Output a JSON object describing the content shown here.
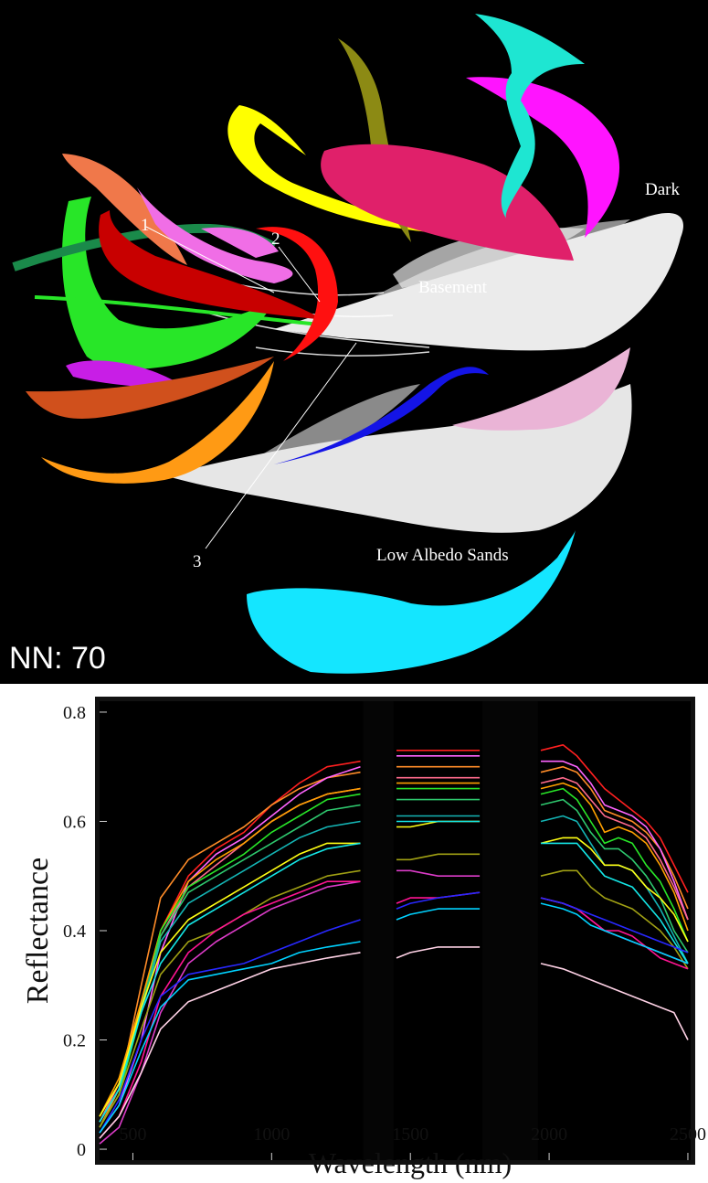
{
  "embedding_panel": {
    "label": "NN: 70",
    "cluster_labels": [
      "Dark",
      "Basement",
      "Low Albedo Sands",
      "1",
      "2",
      "3"
    ],
    "cluster_colors": {
      "dark_cluster": "#ffffff",
      "green": "#28e628",
      "dark_green": "#1a8a4a",
      "red": "#c80000",
      "bright_red": "#ff1010",
      "orange": "#ff9a14",
      "burnt_orange": "#d0501c",
      "salmon": "#f0784a",
      "yellow": "#ffff00",
      "olive": "#8c8a14",
      "crimson": "#e0206a",
      "magenta": "#ff14ff",
      "violet": "#c81ee6",
      "pink": "#f06ee6",
      "light_pink": "#eab4d6",
      "turquoise": "#1ee6d2",
      "cyan": "#14e6ff",
      "blue": "#1414e6"
    }
  },
  "chart_data": {
    "type": "line",
    "title": "",
    "xlabel": "Wavelength (nm)",
    "ylabel": "Reflectance",
    "xlim": [
      380,
      2510
    ],
    "ylim": [
      -0.02,
      0.82
    ],
    "xticks": [
      500,
      1000,
      1500,
      2000,
      2500
    ],
    "yticks": [
      0,
      0.2,
      0.4,
      0.6,
      0.8
    ],
    "ytick_labels": [
      "0",
      "0.2",
      "0.4",
      "0.6",
      "0.8"
    ],
    "masked_bands_nm": [
      [
        1330,
        1440
      ],
      [
        1760,
        1960
      ]
    ],
    "grid": false,
    "legend": "none",
    "x": [
      380,
      450,
      530,
      600,
      700,
      800,
      900,
      1000,
      1100,
      1200,
      1320,
      1450,
      1500,
      1600,
      1750,
      1970,
      2050,
      2100,
      2150,
      2200,
      2250,
      2300,
      2350,
      2400,
      2450,
      2500
    ],
    "series": [
      {
        "color": "#ff2020",
        "values": [
          0.05,
          0.12,
          0.27,
          0.4,
          0.5,
          0.55,
          0.58,
          0.63,
          0.67,
          0.7,
          0.71,
          0.73,
          0.73,
          0.73,
          0.73,
          0.73,
          0.74,
          0.72,
          0.69,
          0.66,
          0.64,
          0.62,
          0.6,
          0.57,
          0.52,
          0.47
        ]
      },
      {
        "color": "#ff8c28",
        "values": [
          0.04,
          0.11,
          0.3,
          0.46,
          0.53,
          0.56,
          0.59,
          0.63,
          0.66,
          0.68,
          0.69,
          0.7,
          0.7,
          0.7,
          0.7,
          0.69,
          0.7,
          0.69,
          0.66,
          0.62,
          0.61,
          0.6,
          0.58,
          0.55,
          0.5,
          0.44
        ]
      },
      {
        "color": "#ff64ff",
        "values": [
          0.03,
          0.08,
          0.2,
          0.36,
          0.49,
          0.54,
          0.57,
          0.61,
          0.65,
          0.68,
          0.7,
          0.72,
          0.72,
          0.72,
          0.72,
          0.71,
          0.71,
          0.7,
          0.67,
          0.63,
          0.62,
          0.61,
          0.59,
          0.55,
          0.49,
          0.42
        ]
      },
      {
        "color": "#ff6a8c",
        "values": [
          0.05,
          0.12,
          0.26,
          0.39,
          0.48,
          0.52,
          0.56,
          0.6,
          0.63,
          0.65,
          0.66,
          0.68,
          0.68,
          0.68,
          0.68,
          0.67,
          0.68,
          0.67,
          0.64,
          0.61,
          0.6,
          0.59,
          0.57,
          0.53,
          0.48,
          0.42
        ]
      },
      {
        "color": "#ffa000",
        "values": [
          0.06,
          0.13,
          0.27,
          0.4,
          0.49,
          0.53,
          0.56,
          0.6,
          0.63,
          0.65,
          0.66,
          0.67,
          0.67,
          0.67,
          0.67,
          0.66,
          0.67,
          0.66,
          0.63,
          0.58,
          0.59,
          0.58,
          0.56,
          0.52,
          0.47,
          0.4
        ]
      },
      {
        "color": "#28e628",
        "values": [
          0.04,
          0.1,
          0.25,
          0.4,
          0.48,
          0.51,
          0.54,
          0.58,
          0.61,
          0.64,
          0.65,
          0.66,
          0.66,
          0.66,
          0.66,
          0.65,
          0.66,
          0.64,
          0.6,
          0.56,
          0.57,
          0.56,
          0.52,
          0.49,
          0.44,
          0.38
        ]
      },
      {
        "color": "#2ec86e",
        "values": [
          0.05,
          0.11,
          0.26,
          0.39,
          0.47,
          0.5,
          0.53,
          0.56,
          0.59,
          0.62,
          0.63,
          0.64,
          0.64,
          0.64,
          0.64,
          0.63,
          0.64,
          0.62,
          0.58,
          0.55,
          0.55,
          0.53,
          0.5,
          0.46,
          0.4,
          0.36
        ]
      },
      {
        "color": "#14b4b4",
        "values": [
          0.05,
          0.11,
          0.25,
          0.38,
          0.45,
          0.48,
          0.51,
          0.54,
          0.57,
          0.59,
          0.6,
          0.61,
          0.61,
          0.61,
          0.61,
          0.6,
          0.61,
          0.6,
          0.56,
          0.52,
          0.52,
          0.51,
          0.48,
          0.44,
          0.39,
          0.34
        ]
      },
      {
        "color": "#ffff14",
        "values": [
          0.06,
          0.12,
          0.26,
          0.36,
          0.42,
          0.45,
          0.48,
          0.51,
          0.54,
          0.56,
          0.56,
          0.59,
          0.59,
          0.6,
          0.6,
          0.56,
          0.57,
          0.57,
          0.55,
          0.52,
          0.52,
          0.51,
          0.48,
          0.46,
          0.43,
          0.38
        ]
      },
      {
        "color": "#14e6e6",
        "values": [
          0.05,
          0.11,
          0.25,
          0.34,
          0.41,
          0.44,
          0.47,
          0.5,
          0.53,
          0.55,
          0.56,
          0.6,
          0.6,
          0.6,
          0.6,
          0.56,
          0.56,
          0.56,
          0.53,
          0.5,
          0.49,
          0.48,
          0.45,
          0.42,
          0.38,
          0.34
        ]
      },
      {
        "color": "#a0a014",
        "values": [
          0.04,
          0.1,
          0.22,
          0.32,
          0.38,
          0.4,
          0.43,
          0.46,
          0.48,
          0.5,
          0.51,
          0.53,
          0.53,
          0.54,
          0.54,
          0.5,
          0.51,
          0.51,
          0.48,
          0.46,
          0.45,
          0.44,
          0.42,
          0.4,
          0.37,
          0.33
        ]
      },
      {
        "color": "#dc3cc8",
        "values": [
          0.01,
          0.04,
          0.14,
          0.25,
          0.34,
          0.38,
          0.41,
          0.44,
          0.46,
          0.48,
          0.49,
          0.51,
          0.51,
          0.5,
          0.5,
          0.46,
          0.45,
          0.44,
          0.42,
          0.4,
          0.39,
          0.38,
          0.37,
          0.36,
          0.35,
          0.34
        ]
      },
      {
        "color": "#ff1493",
        "values": [
          0.02,
          0.06,
          0.16,
          0.28,
          0.36,
          0.4,
          0.43,
          0.45,
          0.47,
          0.49,
          0.49,
          0.45,
          0.46,
          0.46,
          0.47,
          0.46,
          0.45,
          0.44,
          0.42,
          0.4,
          0.4,
          0.39,
          0.37,
          0.35,
          0.34,
          0.33
        ]
      },
      {
        "color": "#2828ff",
        "values": [
          0.03,
          0.09,
          0.2,
          0.28,
          0.32,
          0.33,
          0.34,
          0.36,
          0.38,
          0.4,
          0.42,
          0.44,
          0.45,
          0.46,
          0.47,
          0.46,
          0.45,
          0.44,
          0.43,
          0.42,
          0.41,
          0.4,
          0.39,
          0.38,
          0.37,
          0.36
        ]
      },
      {
        "color": "#00d2ff",
        "values": [
          0.03,
          0.08,
          0.18,
          0.26,
          0.31,
          0.32,
          0.33,
          0.34,
          0.36,
          0.37,
          0.38,
          0.42,
          0.43,
          0.44,
          0.44,
          0.45,
          0.44,
          0.43,
          0.41,
          0.4,
          0.39,
          0.38,
          0.37,
          0.36,
          0.35,
          0.34
        ]
      },
      {
        "color": "#ffd2e6",
        "values": [
          0.02,
          0.06,
          0.14,
          0.22,
          0.27,
          0.29,
          0.31,
          0.33,
          0.34,
          0.35,
          0.36,
          0.35,
          0.36,
          0.37,
          0.37,
          0.34,
          0.33,
          0.32,
          0.31,
          0.3,
          0.29,
          0.28,
          0.27,
          0.26,
          0.25,
          0.2
        ]
      }
    ]
  }
}
